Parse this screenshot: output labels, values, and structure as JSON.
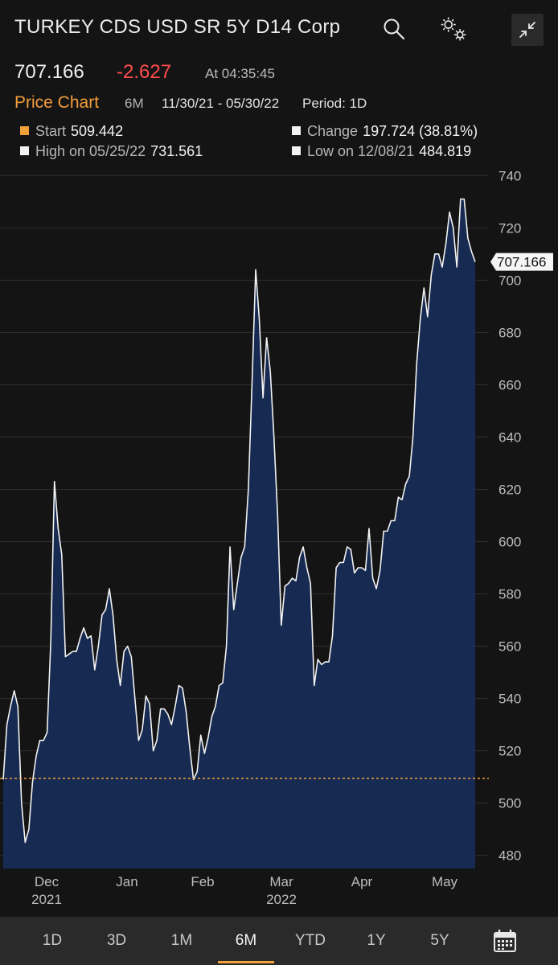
{
  "header": {
    "title": "TURKEY CDS USD SR 5Y D14 Corp",
    "icons": [
      "search-icon",
      "gear-icon",
      "collapse-icon"
    ]
  },
  "quote": {
    "last": "707.166",
    "change": "-2.627",
    "time": "At 04:35:45"
  },
  "chart_header": {
    "title": "Price Chart",
    "period": "6M",
    "range": "11/30/21 - 05/30/22",
    "interval": "Period: 1D"
  },
  "stats": {
    "start_label": "Start",
    "start_value": "509.442",
    "change_label": "Change",
    "change_value": "197.724 (38.81%)",
    "high_label": "High on 05/25/22",
    "high_value": "731.561",
    "low_label": "Low on 12/08/21",
    "low_value": "484.819"
  },
  "colors": {
    "accent": "#f4a13c",
    "negative": "#ff4d4d",
    "area_fill": "#162a52",
    "line": "#f2f2f2"
  },
  "chart_data": {
    "type": "area",
    "ylim": [
      475,
      745
    ],
    "y_ticks": [
      "740",
      "720",
      "700",
      "680",
      "660",
      "640",
      "620",
      "600",
      "580",
      "560",
      "540",
      "520",
      "500",
      "480"
    ],
    "x_ticks": [
      {
        "label": "Dec",
        "sub": "2021"
      },
      {
        "label": "Jan",
        "sub": ""
      },
      {
        "label": "Feb",
        "sub": ""
      },
      {
        "label": "Mar",
        "sub": "2022"
      },
      {
        "label": "Apr",
        "sub": ""
      },
      {
        "label": "May",
        "sub": ""
      }
    ],
    "reference_value": 509.442,
    "last_value_label": "707.166",
    "values": [
      509,
      530,
      537,
      543,
      537,
      500,
      485,
      490,
      508,
      518,
      524,
      524,
      527,
      562,
      623,
      605,
      595,
      556,
      557,
      558,
      558,
      563,
      567,
      563,
      564,
      551,
      560,
      572,
      574,
      582,
      572,
      555,
      545,
      558,
      560,
      556,
      540,
      524,
      528,
      541,
      538,
      520,
      524,
      536,
      536,
      534,
      530,
      537,
      545,
      544,
      535,
      521,
      509,
      512,
      526,
      519,
      525,
      533,
      537,
      545,
      546,
      560,
      598,
      574,
      584,
      594,
      598,
      620,
      660,
      704,
      685,
      655,
      678,
      665,
      640,
      610,
      568,
      583,
      584,
      586,
      585,
      594,
      598,
      590,
      584,
      545,
      555,
      553,
      554,
      554,
      564,
      590,
      592,
      592,
      598,
      597,
      588,
      590,
      590,
      589,
      605,
      586,
      582,
      589,
      604,
      604,
      608,
      608,
      617,
      616,
      622,
      625,
      640,
      668,
      685,
      697,
      686,
      702,
      710,
      710,
      705,
      714,
      726,
      720,
      705,
      731,
      731,
      716,
      711,
      707
    ]
  },
  "tabs": [
    {
      "label": "1D"
    },
    {
      "label": "3D"
    },
    {
      "label": "1M"
    },
    {
      "label": "6M",
      "active": true
    },
    {
      "label": "YTD"
    },
    {
      "label": "1Y"
    },
    {
      "label": "5Y"
    }
  ]
}
